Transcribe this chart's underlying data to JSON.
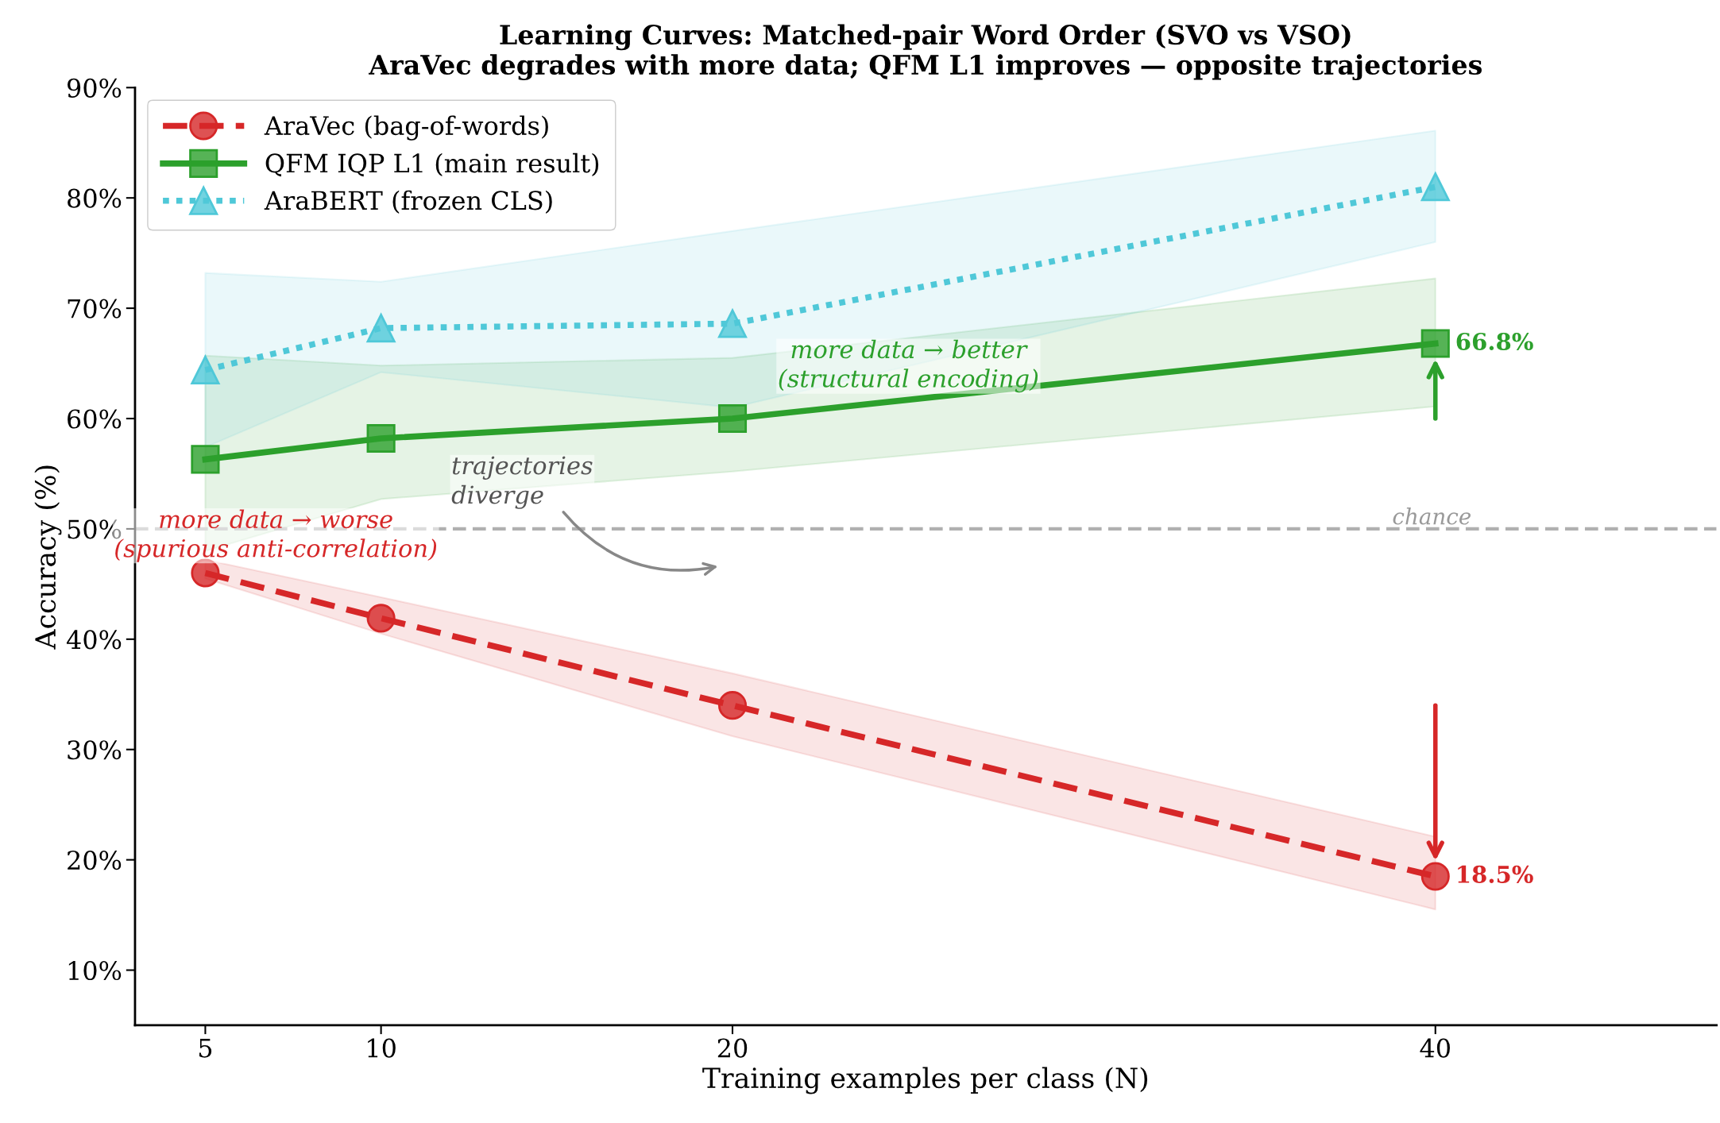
{
  "chart_data": {
    "type": "line",
    "title": "Learning Curves: Matched-pair Word Order (SVO vs VSO)\nAraVec degrades with more data; QFM L1 improves — opposite trajectories",
    "xlabel": "Training examples per class (N)",
    "ylabel": "Accuracy (%)",
    "x": [
      5,
      10,
      20,
      40
    ],
    "series": [
      {
        "name": "AraVec (bag-of-words)",
        "color": "#d62728",
        "values": [
          46.0,
          41.9,
          34.0,
          18.5
        ],
        "lower": [
          45.5,
          40.5,
          31.2,
          15.5
        ],
        "upper": [
          47.2,
          43.8,
          36.9,
          22.1
        ],
        "marker": "circle",
        "line_style": "dashed",
        "value_labels": [
          null,
          null,
          null,
          "18.5%"
        ]
      },
      {
        "name": "QFM IQP L1 (main result)",
        "color": "#2ca02c",
        "values": [
          56.3,
          58.2,
          60.0,
          66.8
        ],
        "lower": [
          48.0,
          52.7,
          55.2,
          61.1
        ],
        "upper": [
          65.7,
          64.8,
          65.5,
          72.7
        ],
        "marker": "square",
        "line_style": "solid",
        "value_labels": [
          null,
          null,
          null,
          "66.8%"
        ]
      },
      {
        "name": "AraBERT (frozen CLS)",
        "color": "#4fc8d8",
        "values": [
          64.4,
          68.2,
          68.6,
          81.0
        ],
        "lower": [
          57.4,
          64.2,
          61.0,
          76.0
        ],
        "upper": [
          73.2,
          72.4,
          77.0,
          86.1
        ],
        "marker": "triangle",
        "line_style": "dotted"
      }
    ],
    "xlim": [
      3,
      48
    ],
    "xticks": [
      5,
      10,
      20,
      40
    ],
    "ylim": [
      5,
      90
    ],
    "yticks": [
      {
        "value": 10,
        "label": "10%"
      },
      {
        "value": 20,
        "label": "20%"
      },
      {
        "value": 30,
        "label": "30%"
      },
      {
        "value": 40,
        "label": "40%"
      },
      {
        "value": 50,
        "label": "50%"
      },
      {
        "value": 60,
        "label": "60%"
      },
      {
        "value": 70,
        "label": "70%"
      },
      {
        "value": 80,
        "label": "80%"
      },
      {
        "value": 90,
        "label": "90%"
      }
    ],
    "ref_lines": [
      {
        "axis": "y",
        "value": 50,
        "label": "chance",
        "color": "#b0b0b0",
        "line_style": "dashed"
      }
    ],
    "annotations": [
      "more data → worse\n(spurious anti-correlation)",
      "more data → better\n(structural encoding)",
      "trajectories\ndiverge"
    ],
    "legend": "top left",
    "grid": false
  }
}
